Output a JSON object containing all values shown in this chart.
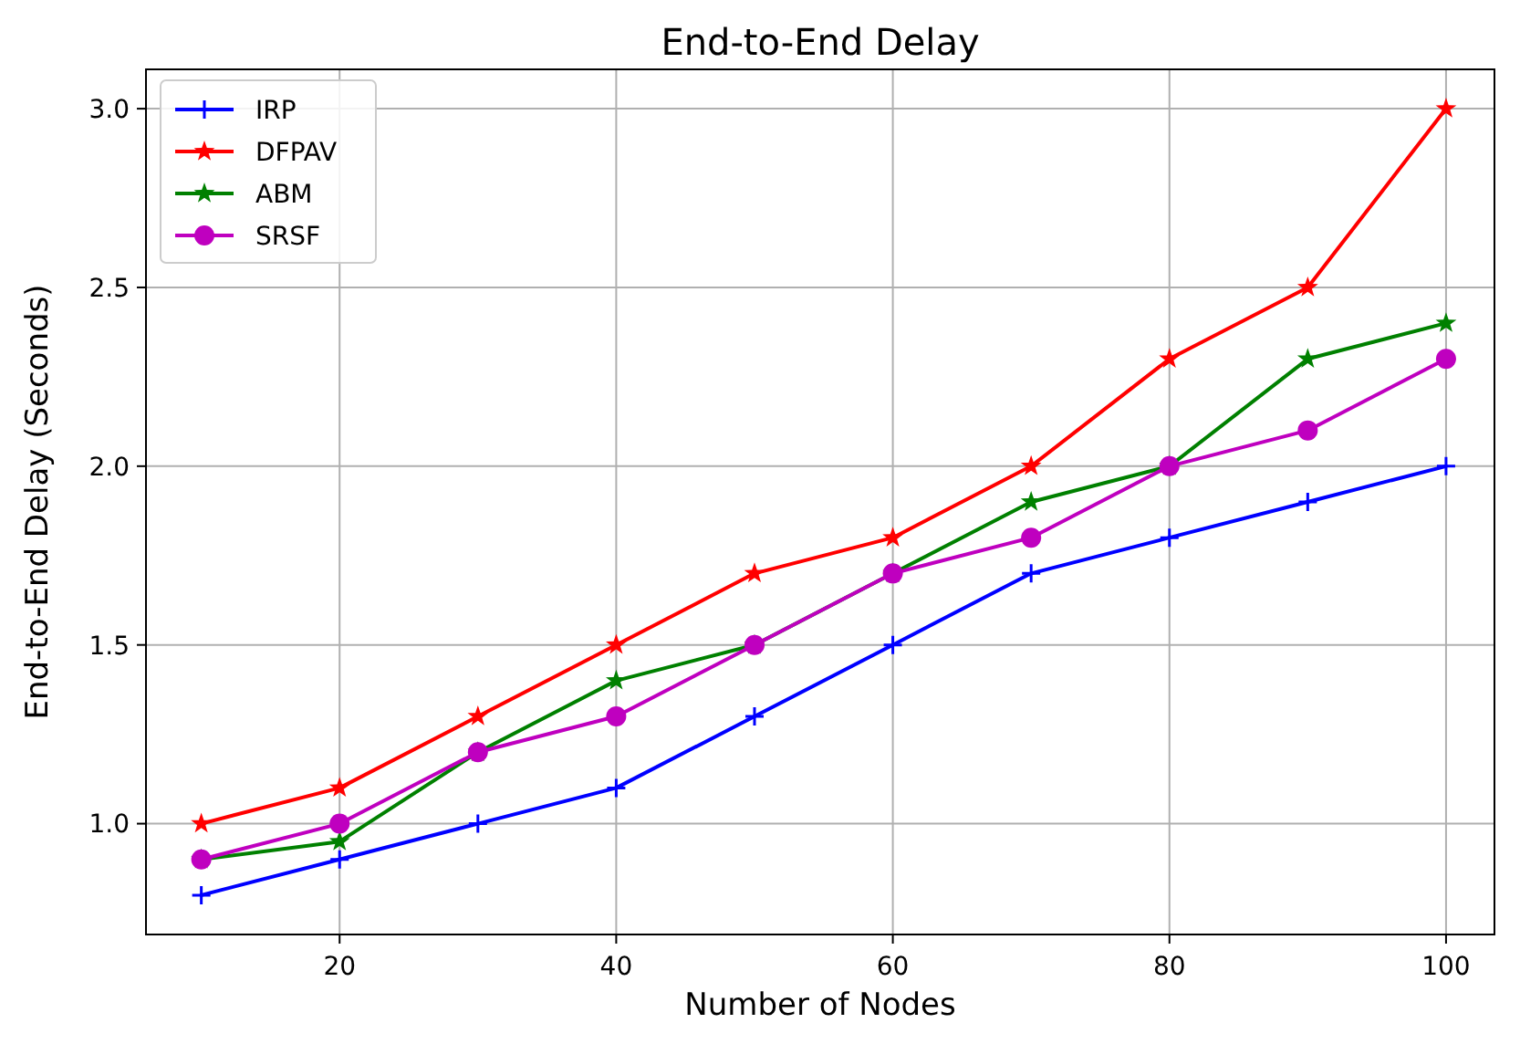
{
  "chart_data": {
    "type": "line",
    "title": "End-to-End Delay",
    "xlabel": "Number of Nodes",
    "ylabel": "End-to-End Delay (Seconds)",
    "x": [
      10,
      20,
      30,
      40,
      50,
      60,
      70,
      80,
      90,
      100
    ],
    "xlim": [
      6,
      103.5
    ],
    "xticks": [
      20,
      40,
      60,
      80,
      100
    ],
    "ylim": [
      0.69,
      3.11
    ],
    "yticks": [
      {
        "value": 1,
        "label": "1.0"
      },
      {
        "value": 1.5,
        "label": "1.5"
      },
      {
        "value": 2,
        "label": "2.0"
      },
      {
        "value": 2.5,
        "label": "2.5"
      },
      {
        "value": 3,
        "label": "3.0"
      }
    ],
    "grid": true,
    "legend": "top left",
    "line_style": "solid",
    "series": [
      {
        "name": "IRP",
        "color": "#0000ff",
        "marker": "cross",
        "values": [
          0.8,
          0.9,
          1.0,
          1.1,
          1.3,
          1.5,
          1.7,
          1.8,
          1.9,
          2.0
        ]
      },
      {
        "name": "DFPAV",
        "color": "#ff0000",
        "marker": "star",
        "values": [
          1.0,
          1.1,
          1.3,
          1.5,
          1.7,
          1.8,
          2.0,
          2.3,
          2.5,
          3.0
        ]
      },
      {
        "name": "ABM",
        "color": "#008000",
        "marker": "star",
        "values": [
          0.9,
          0.95,
          1.2,
          1.4,
          1.5,
          1.7,
          1.9,
          2.0,
          2.3,
          2.4
        ]
      },
      {
        "name": "SRSF",
        "color": "#bf00bf",
        "marker": "circle",
        "values": [
          0.9,
          1.0,
          1.2,
          1.3,
          1.5,
          1.7,
          1.8,
          2.0,
          2.1,
          2.3
        ]
      }
    ]
  }
}
